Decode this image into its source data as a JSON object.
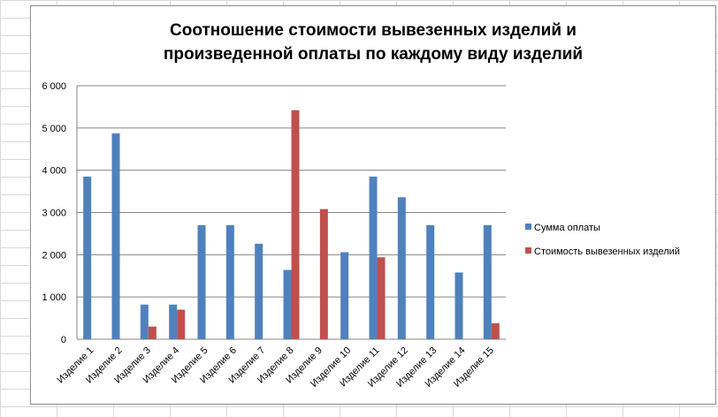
{
  "chart_data": {
    "type": "bar",
    "title_lines": [
      "Соотношение стоимости вывезенных изделий и",
      "произведенной оплаты по каждому виду изделий"
    ],
    "categories": [
      "Изделие 1",
      "Изделие 2",
      "Изделие 3",
      "Изделие 4",
      "Изделие 5",
      "Изделие 6",
      "Изделие 7",
      "Изделие 8",
      "Изделие 9",
      "Изделие 10",
      "Изделие 11",
      "Изделие 12",
      "Изделие 13",
      "Изделие 14",
      "Изделие 15"
    ],
    "series": [
      {
        "name": "Сумма оплаты",
        "color": "#4f81bd",
        "values": [
          3850,
          4870,
          820,
          820,
          2700,
          2700,
          2260,
          1640,
          0,
          2060,
          3850,
          3360,
          2700,
          1580,
          2700
        ]
      },
      {
        "name": "Стоимость вывезенных изделий",
        "color": "#c0504d",
        "values": [
          0,
          0,
          300,
          700,
          0,
          0,
          0,
          5420,
          3080,
          0,
          1940,
          0,
          0,
          0,
          380
        ]
      }
    ],
    "ylim": [
      0,
      6000
    ],
    "yticks": [
      0,
      1000,
      2000,
      3000,
      4000,
      5000,
      6000
    ],
    "ytick_labels": [
      "0",
      "1 000",
      "2 000",
      "3 000",
      "4 000",
      "5 000",
      "6 000"
    ],
    "grid": true,
    "legend_position": "right"
  }
}
